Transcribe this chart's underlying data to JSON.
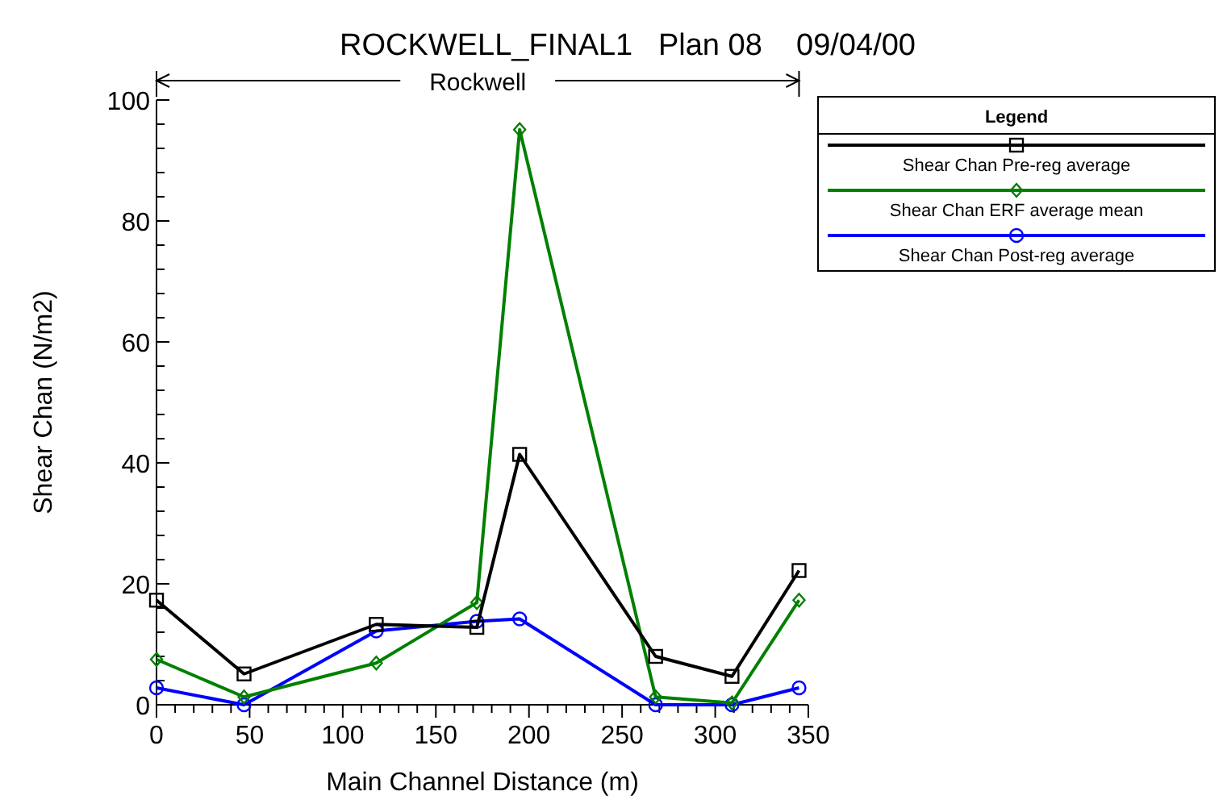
{
  "chart_data": {
    "type": "line",
    "title": "ROCKWELL_FINAL1   Plan 08    09/04/00",
    "xlabel": "Main Channel Distance (m)",
    "ylabel": "Shear Chan (N/m2)",
    "legend_title": "Legend",
    "legend": "top right",
    "annotations": [
      "Rockwell"
    ],
    "xlim": [
      0,
      350
    ],
    "ylim": [
      0,
      100
    ],
    "xticks": [
      0,
      {
        "value": 10,
        "label": null
      },
      {
        "value": 20,
        "label": null
      },
      {
        "value": 30,
        "label": null
      },
      {
        "value": 40,
        "label": null
      },
      50,
      {
        "value": 60,
        "label": null
      },
      {
        "value": 70,
        "label": null
      },
      {
        "value": 80,
        "label": null
      },
      {
        "value": 90,
        "label": null
      },
      100,
      {
        "value": 110,
        "label": null
      },
      {
        "value": 120,
        "label": null
      },
      {
        "value": 130,
        "label": null
      },
      {
        "value": 140,
        "label": null
      },
      150,
      {
        "value": 160,
        "label": null
      },
      {
        "value": 170,
        "label": null
      },
      {
        "value": 180,
        "label": null
      },
      {
        "value": 190,
        "label": null
      },
      200,
      {
        "value": 210,
        "label": null
      },
      {
        "value": 220,
        "label": null
      },
      {
        "value": 230,
        "label": null
      },
      {
        "value": 240,
        "label": null
      },
      250,
      {
        "value": 260,
        "label": null
      },
      {
        "value": 270,
        "label": null
      },
      {
        "value": 280,
        "label": null
      },
      {
        "value": 290,
        "label": null
      },
      300,
      {
        "value": 310,
        "label": null
      },
      {
        "value": 320,
        "label": null
      },
      {
        "value": 330,
        "label": null
      },
      {
        "value": 340,
        "label": null
      },
      350
    ],
    "yticks": [
      0,
      {
        "value": 4,
        "label": null
      },
      {
        "value": 8,
        "label": null
      },
      {
        "value": 12,
        "label": null
      },
      {
        "value": 16,
        "label": null
      },
      20,
      {
        "value": 24,
        "label": null
      },
      {
        "value": 28,
        "label": null
      },
      {
        "value": 32,
        "label": null
      },
      {
        "value": 36,
        "label": null
      },
      40,
      {
        "value": 44,
        "label": null
      },
      {
        "value": 48,
        "label": null
      },
      {
        "value": 52,
        "label": null
      },
      {
        "value": 56,
        "label": null
      },
      60,
      {
        "value": 64,
        "label": null
      },
      {
        "value": 68,
        "label": null
      },
      {
        "value": 72,
        "label": null
      },
      {
        "value": 76,
        "label": null
      },
      80,
      {
        "value": 84,
        "label": null
      },
      {
        "value": 88,
        "label": null
      },
      {
        "value": 92,
        "label": null
      },
      {
        "value": 96,
        "label": null
      },
      100
    ],
    "x": [
      0,
      47,
      118,
      172,
      195,
      268,
      309,
      345
    ],
    "series": [
      {
        "name": "Shear Chan Pre-reg average",
        "color": "#000000",
        "marker": "square",
        "values": [
          17.3,
          5.1,
          13.3,
          12.8,
          41.4,
          8.0,
          4.7,
          22.2
        ]
      },
      {
        "name": "Shear Chan ERF average mean",
        "color": "#008000",
        "marker": "diamond",
        "values": [
          7.5,
          1.3,
          6.9,
          16.9,
          95.1,
          1.3,
          0.3,
          17.3
        ]
      },
      {
        "name": "Shear Chan Post-reg average",
        "color": "#0000ff",
        "marker": "circle",
        "values": [
          2.8,
          0,
          12.2,
          13.8,
          14.2,
          0,
          0,
          2.8
        ]
      }
    ]
  }
}
